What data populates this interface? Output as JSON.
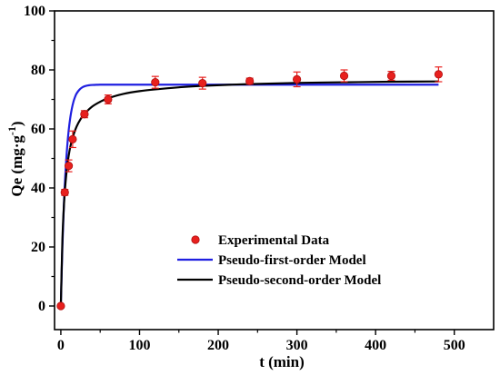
{
  "chart_data": {
    "type": "scatter",
    "xlabel": "t (min)",
    "ylabel": "Qe (mg·g",
    "ylabel_sup": "-1",
    "ylabel_close": ")",
    "xlim": [
      -8,
      550
    ],
    "ylim": [
      -8,
      100
    ],
    "xticks": [
      0,
      100,
      200,
      300,
      400,
      500
    ],
    "yticks": [
      0,
      20,
      40,
      60,
      80,
      100
    ],
    "legend_position": "bottom-right",
    "grid": false,
    "series": [
      {
        "name": "Experimental Data",
        "kind": "points",
        "color": "#e8201e",
        "points": [
          {
            "x": 0,
            "y": 0,
            "err": 0
          },
          {
            "x": 5,
            "y": 38.5,
            "err": 1.0
          },
          {
            "x": 10,
            "y": 47.5,
            "err": 2.0
          },
          {
            "x": 15,
            "y": 56.5,
            "err": 2.8
          },
          {
            "x": 30,
            "y": 65,
            "err": 1.2
          },
          {
            "x": 60,
            "y": 70,
            "err": 1.5
          },
          {
            "x": 120,
            "y": 75.8,
            "err": 2.0
          },
          {
            "x": 180,
            "y": 75.5,
            "err": 2.0
          },
          {
            "x": 240,
            "y": 76.2,
            "err": 1.0
          },
          {
            "x": 300,
            "y": 76.8,
            "err": 2.5
          },
          {
            "x": 360,
            "y": 78,
            "err": 2.0
          },
          {
            "x": 420,
            "y": 78,
            "err": 1.5
          },
          {
            "x": 480,
            "y": 78.5,
            "err": 2.5
          }
        ]
      },
      {
        "name": "Pseudo-first-order Model",
        "kind": "line",
        "color": "#1f1fe0",
        "x": [
          0,
          2,
          4,
          6,
          8,
          10,
          12,
          14,
          16,
          18,
          20,
          24,
          28,
          32,
          36,
          40,
          45,
          50,
          60,
          70,
          80,
          100,
          120,
          160,
          200,
          300,
          400,
          480
        ],
        "y": [
          0,
          20.3,
          35.1,
          45.9,
          53.8,
          59.6,
          63.8,
          66.9,
          69.2,
          70.8,
          72.0,
          73.4,
          74.2,
          74.6,
          74.8,
          74.9,
          74.95,
          75.0,
          75.0,
          75.0,
          75.0,
          75.0,
          75.0,
          75.0,
          75.0,
          75.0,
          75.0,
          75.0
        ]
      },
      {
        "name": "Pseudo-second-order Model",
        "kind": "line",
        "color": "#000000",
        "x": [
          0,
          2,
          4,
          6,
          8,
          10,
          12,
          15,
          20,
          25,
          30,
          40,
          50,
          60,
          80,
          100,
          120,
          150,
          180,
          240,
          300,
          360,
          420,
          480
        ],
        "y": [
          0,
          22.4,
          34.5,
          42.0,
          47.2,
          51.0,
          53.9,
          57.1,
          60.8,
          63.3,
          65.1,
          67.6,
          69.2,
          70.4,
          71.9,
          72.8,
          73.4,
          74.1,
          74.6,
          75.2,
          75.6,
          75.8,
          76.0,
          76.1
        ]
      }
    ]
  }
}
